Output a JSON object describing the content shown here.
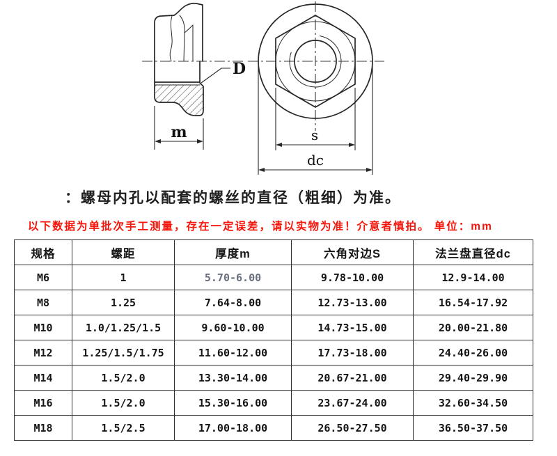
{
  "drawing": {
    "labels": {
      "bore": "D",
      "thickness": "m",
      "across_flats": "s",
      "flange_diameter": "dc"
    }
  },
  "caption": "：螺母内孔以配套的螺丝的直径（粗细）为准。",
  "notice": "以下数据为单批次手工测量，存在一定误差，请以实物为准！介意者慎拍。 单位：mm",
  "table": {
    "headers": [
      "规格",
      "螺距",
      "厚度m",
      "六角对边S",
      "法兰盘直径dc"
    ],
    "rows": [
      [
        "M6",
        "1",
        "5.70-6.00",
        "9.78-10.00",
        "12.9-14.00"
      ],
      [
        "M8",
        "1.25",
        "7.64-8.00",
        "12.73-13.00",
        "16.54-17.92"
      ],
      [
        "M10",
        "1.0/1.25/1.5",
        "9.60-10.00",
        "14.73-15.00",
        "20.00-21.80"
      ],
      [
        "M12",
        "1.25/1.5/1.75",
        "11.60-12.00",
        "17.73-18.00",
        "24.40-26.00"
      ],
      [
        "M14",
        "1.5/2.0",
        "13.30-14.00",
        "20.67-21.00",
        "29.40-29.90"
      ],
      [
        "M16",
        "1.5/2.0",
        "15.30-16.00",
        "23.67-24.00",
        "32.60-34.50"
      ],
      [
        "M18",
        "1.5/2.5",
        "17.00-18.00",
        "26.50-27.50",
        "36.50-37.50"
      ]
    ],
    "muted_cell": [
      0,
      2
    ]
  },
  "colors": {
    "notice_red": "#f5150a",
    "line": "#262626",
    "muted_text": "#6a7080"
  }
}
